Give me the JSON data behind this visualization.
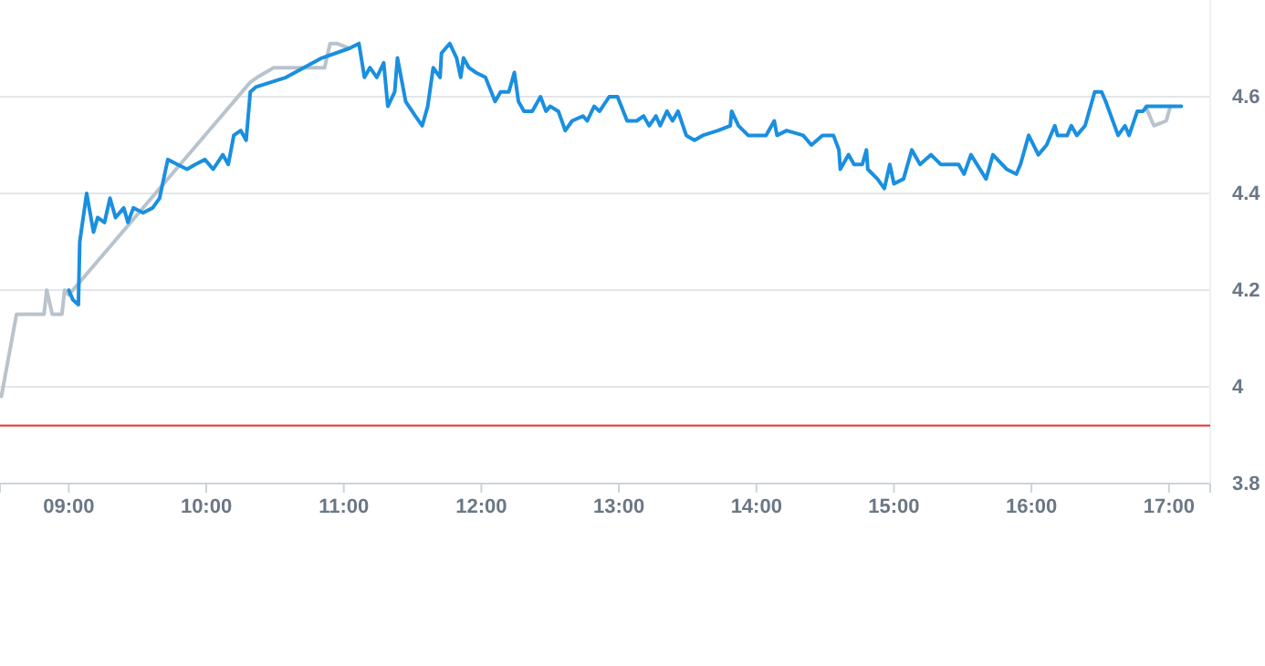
{
  "chart_data": {
    "type": "line",
    "xlim": [
      8.5,
      17.3
    ],
    "ylim": [
      3.8,
      4.8
    ],
    "xticks": [
      {
        "value": 9,
        "label": "09:00"
      },
      {
        "value": 10,
        "label": "10:00"
      },
      {
        "value": 11,
        "label": "11:00"
      },
      {
        "value": 12,
        "label": "12:00"
      },
      {
        "value": 13,
        "label": "13:00"
      },
      {
        "value": 14,
        "label": "14:00"
      },
      {
        "value": 15,
        "label": "15:00"
      },
      {
        "value": 16,
        "label": "16:00"
      },
      {
        "value": 17,
        "label": "17:00"
      }
    ],
    "yticks": [
      3.8,
      4,
      4.2,
      4.4,
      4.6
    ],
    "grid": "y",
    "marker": "none",
    "line_style": "solid",
    "ref_lines": [
      {
        "axis": "y",
        "value": 3.92,
        "label": null,
        "color": "#e0352b"
      }
    ],
    "series": [
      {
        "color": "#b9c3cc",
        "x": [
          8.51,
          8.62,
          8.82,
          8.84,
          8.88,
          8.95,
          8.97,
          9.0,
          10.32,
          10.37,
          10.49,
          10.86,
          10.9,
          10.95,
          11.04,
          11.05,
          16.83,
          16.89,
          16.98,
          17.01
        ],
        "values": [
          3.98,
          4.15,
          4.15,
          4.2,
          4.15,
          4.15,
          4.2,
          4.19,
          4.63,
          4.64,
          4.66,
          4.66,
          4.71,
          4.71,
          4.7,
          null,
          4.58,
          4.54,
          4.55,
          4.58
        ]
      },
      {
        "color": "#1a8fe0",
        "x": [
          9.0,
          9.03,
          9.07,
          9.08,
          9.13,
          9.18,
          9.21,
          9.26,
          9.3,
          9.34,
          9.4,
          9.43,
          9.47,
          9.54,
          9.61,
          9.66,
          9.72,
          9.79,
          9.86,
          9.92,
          9.99,
          10.05,
          10.12,
          10.16,
          10.2,
          10.25,
          10.29,
          10.32,
          10.36,
          10.58,
          10.84,
          11.04,
          11.11,
          11.15,
          11.19,
          11.24,
          11.29,
          11.32,
          11.37,
          11.39,
          11.45,
          11.52,
          11.57,
          11.61,
          11.65,
          11.7,
          11.71,
          11.77,
          11.82,
          11.85,
          11.87,
          11.91,
          11.96,
          12.03,
          12.1,
          12.14,
          12.2,
          12.24,
          12.27,
          12.31,
          12.37,
          12.43,
          12.47,
          12.5,
          12.56,
          12.61,
          12.66,
          12.74,
          12.77,
          12.82,
          12.86,
          12.93,
          12.99,
          13.06,
          13.13,
          13.18,
          13.22,
          13.27,
          13.3,
          13.35,
          13.39,
          13.43,
          13.49,
          13.55,
          13.61,
          13.72,
          13.81,
          13.82,
          13.87,
          13.94,
          14.07,
          14.13,
          14.15,
          14.22,
          14.34,
          14.4,
          14.48,
          14.56,
          14.6,
          14.61,
          14.67,
          14.71,
          14.77,
          14.8,
          14.81,
          14.88,
          14.93,
          14.97,
          15.0,
          15.07,
          15.13,
          15.19,
          15.27,
          15.34,
          15.47,
          15.51,
          15.56,
          15.67,
          15.72,
          15.82,
          15.89,
          15.92,
          15.98,
          16.05,
          16.11,
          16.17,
          16.19,
          16.26,
          16.29,
          16.33,
          16.39,
          16.46,
          16.51,
          16.54,
          16.63,
          16.68,
          16.71,
          16.77,
          16.81,
          16.84,
          17.09
        ],
        "values": [
          4.2,
          4.18,
          4.17,
          4.3,
          4.4,
          4.32,
          4.35,
          4.34,
          4.39,
          4.35,
          4.37,
          4.34,
          4.37,
          4.36,
          4.37,
          4.39,
          4.47,
          4.46,
          4.45,
          4.46,
          4.47,
          4.45,
          4.48,
          4.46,
          4.52,
          4.53,
          4.51,
          4.61,
          4.62,
          4.64,
          4.68,
          4.7,
          4.71,
          4.64,
          4.66,
          4.64,
          4.67,
          4.58,
          4.61,
          4.68,
          4.59,
          4.56,
          4.54,
          4.58,
          4.66,
          4.64,
          4.69,
          4.71,
          4.68,
          4.64,
          4.68,
          4.66,
          4.65,
          4.64,
          4.59,
          4.61,
          4.61,
          4.65,
          4.59,
          4.57,
          4.57,
          4.6,
          4.57,
          4.58,
          4.57,
          4.53,
          4.55,
          4.56,
          4.55,
          4.58,
          4.57,
          4.6,
          4.6,
          4.55,
          4.55,
          4.56,
          4.54,
          4.56,
          4.54,
          4.57,
          4.55,
          4.57,
          4.52,
          4.51,
          4.52,
          4.53,
          4.54,
          4.57,
          4.54,
          4.52,
          4.52,
          4.55,
          4.52,
          4.53,
          4.52,
          4.5,
          4.52,
          4.52,
          4.49,
          4.45,
          4.48,
          4.46,
          4.46,
          4.49,
          4.45,
          4.43,
          4.41,
          4.46,
          4.42,
          4.43,
          4.49,
          4.46,
          4.48,
          4.46,
          4.46,
          4.44,
          4.48,
          4.43,
          4.48,
          4.45,
          4.44,
          4.46,
          4.52,
          4.48,
          4.5,
          4.54,
          4.52,
          4.52,
          4.54,
          4.52,
          4.54,
          4.61,
          4.61,
          4.59,
          4.52,
          4.54,
          4.52,
          4.57,
          4.57,
          4.58,
          4.58
        ]
      }
    ]
  }
}
